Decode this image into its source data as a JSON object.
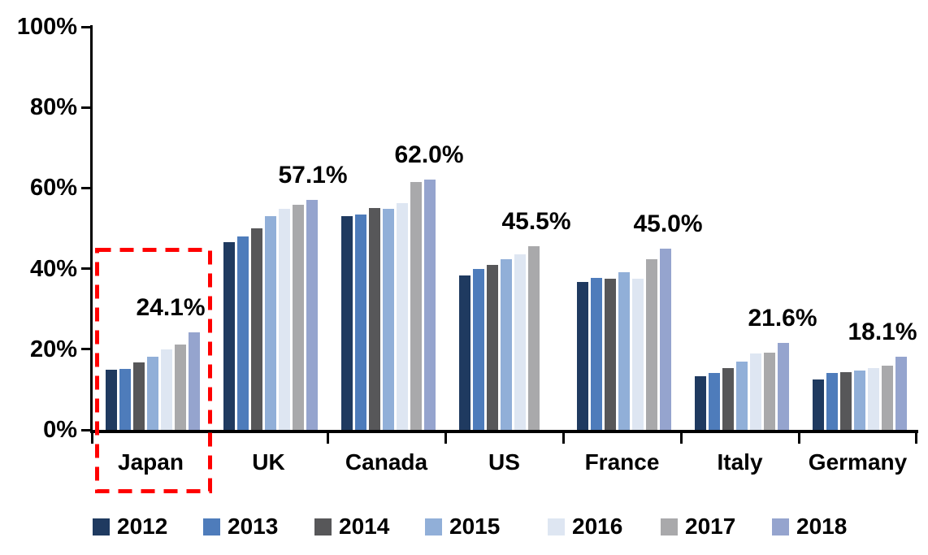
{
  "chart_data": {
    "type": "bar",
    "title": "",
    "categories": [
      "Japan",
      "UK",
      "Canada",
      "US",
      "France",
      "Italy",
      "Germany"
    ],
    "series": [
      {
        "name": "2012",
        "color": "#1F3A60",
        "values": [
          14.9,
          46.5,
          53.1,
          38.4,
          36.6,
          13.4,
          12.6
        ]
      },
      {
        "name": "2013",
        "color": "#4E7CBB",
        "values": [
          15.1,
          48.0,
          53.5,
          40.0,
          37.7,
          14.2,
          14.1
        ]
      },
      {
        "name": "2014",
        "color": "#575759",
        "values": [
          16.7,
          50.1,
          55.0,
          41.0,
          37.5,
          15.4,
          14.4
        ]
      },
      {
        "name": "2015",
        "color": "#91AFD8",
        "values": [
          18.1,
          53.1,
          54.8,
          42.3,
          39.2,
          16.9,
          14.7
        ]
      },
      {
        "name": "2016",
        "color": "#DEE6F2",
        "values": [
          19.9,
          54.8,
          56.2,
          43.6,
          37.4,
          19.0,
          15.4
        ]
      },
      {
        "name": "2017",
        "color": "#A9A9AB",
        "values": [
          21.1,
          55.8,
          61.5,
          45.5,
          42.4,
          19.2,
          15.9
        ]
      },
      {
        "name": "2018",
        "color": "#95A4CE",
        "values": [
          24.1,
          57.1,
          62.0,
          null,
          45.0,
          21.6,
          18.1
        ]
      }
    ],
    "group_value_labels": [
      "24.1%",
      "57.1%",
      "62.0%",
      "45.5%",
      "45.0%",
      "21.6%",
      "18.1%"
    ],
    "y_axis": {
      "min": 0,
      "max": 100,
      "ticks": [
        "0%",
        "20%",
        "40%",
        "60%",
        "80%",
        "100%"
      ]
    },
    "legend": {
      "position": "bottom",
      "entries": [
        "2012",
        "2013",
        "2014",
        "2015",
        "2016",
        "2017",
        "2018"
      ]
    },
    "grid": false,
    "highlight": {
      "target": "Japan",
      "shape": "dashed-rectangle",
      "color": "#FF0000"
    }
  }
}
